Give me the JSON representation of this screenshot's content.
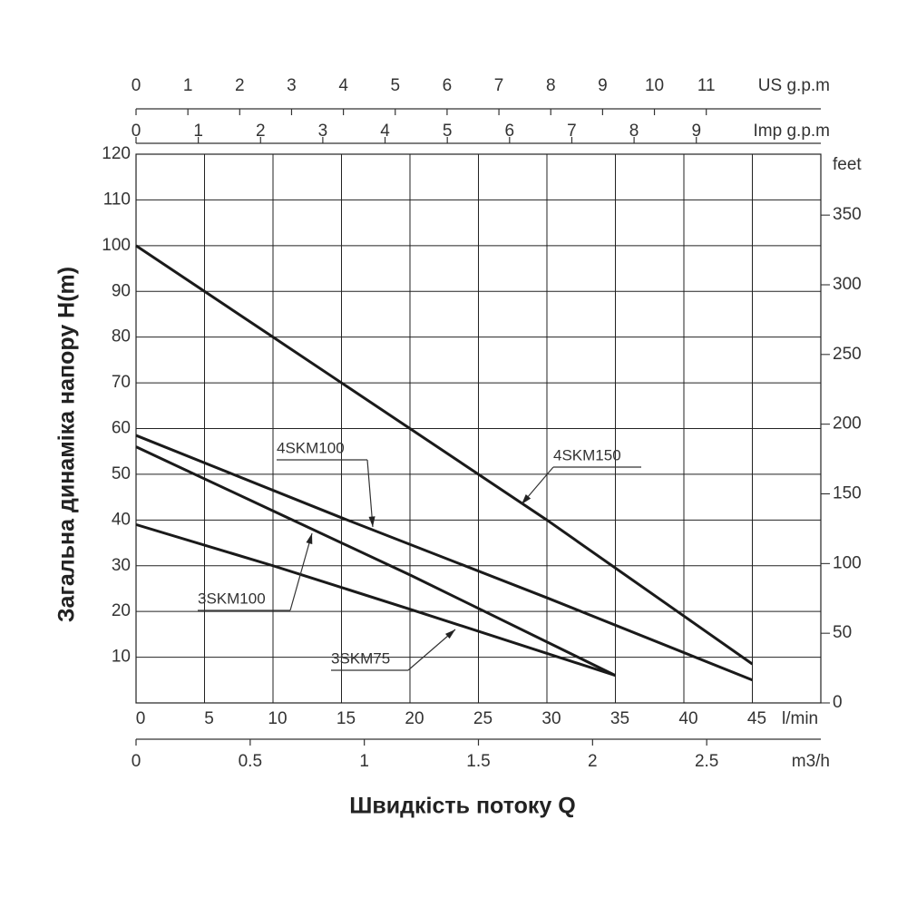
{
  "chart_data": {
    "type": "line",
    "y_label": "Загальна динаміка напору H(m)",
    "x_title": "Швидкість потоку Q",
    "x_label": "l/min",
    "xlim": [
      0,
      50
    ],
    "xticks": [
      0,
      5,
      10,
      15,
      20,
      25,
      30,
      35,
      40,
      45
    ],
    "ylim": [
      0,
      120
    ],
    "yticks": [
      10,
      20,
      30,
      40,
      50,
      60,
      70,
      80,
      90,
      100,
      110,
      120
    ],
    "y2_label": "feet",
    "y2lim": [
      0,
      393.7
    ],
    "y2ticks": [
      0,
      50,
      100,
      150,
      200,
      250,
      300,
      350
    ],
    "grid": true,
    "secondary_x_axes": [
      {
        "label": "US g.p.m",
        "lim": [
          0,
          13.21
        ],
        "ticks": [
          0,
          1,
          2,
          3,
          4,
          5,
          6,
          7,
          8,
          9,
          10,
          11
        ],
        "position": "top"
      },
      {
        "label": "Imp g.p.m",
        "lim": [
          0,
          11.0
        ],
        "ticks": [
          0,
          1,
          2,
          3,
          4,
          5,
          6,
          7,
          8,
          9
        ],
        "position": "top"
      },
      {
        "label": "m3/h",
        "lim": [
          0,
          3.0
        ],
        "ticks": [
          0,
          0.5,
          1,
          1.5,
          2,
          2.5
        ],
        "position": "bottom"
      }
    ],
    "series": [
      {
        "name": "4SKM150",
        "color": "#1a1a1a",
        "x": [
          0,
          10,
          20,
          30,
          40,
          45
        ],
        "values": [
          100,
          80,
          60,
          40,
          19,
          8.5
        ]
      },
      {
        "name": "4SKM100",
        "color": "#1a1a1a",
        "x": [
          0,
          15,
          30,
          45
        ],
        "values": [
          58.5,
          40.5,
          23,
          5
        ]
      },
      {
        "name": "3SKM100",
        "color": "#1a1a1a",
        "x": [
          0,
          10,
          20,
          35
        ],
        "values": [
          56,
          42,
          28,
          6
        ]
      },
      {
        "name": "3SKM75",
        "color": "#1a1a1a",
        "x": [
          0,
          10,
          20,
          35
        ],
        "values": [
          39,
          30,
          20.5,
          6
        ]
      }
    ]
  }
}
